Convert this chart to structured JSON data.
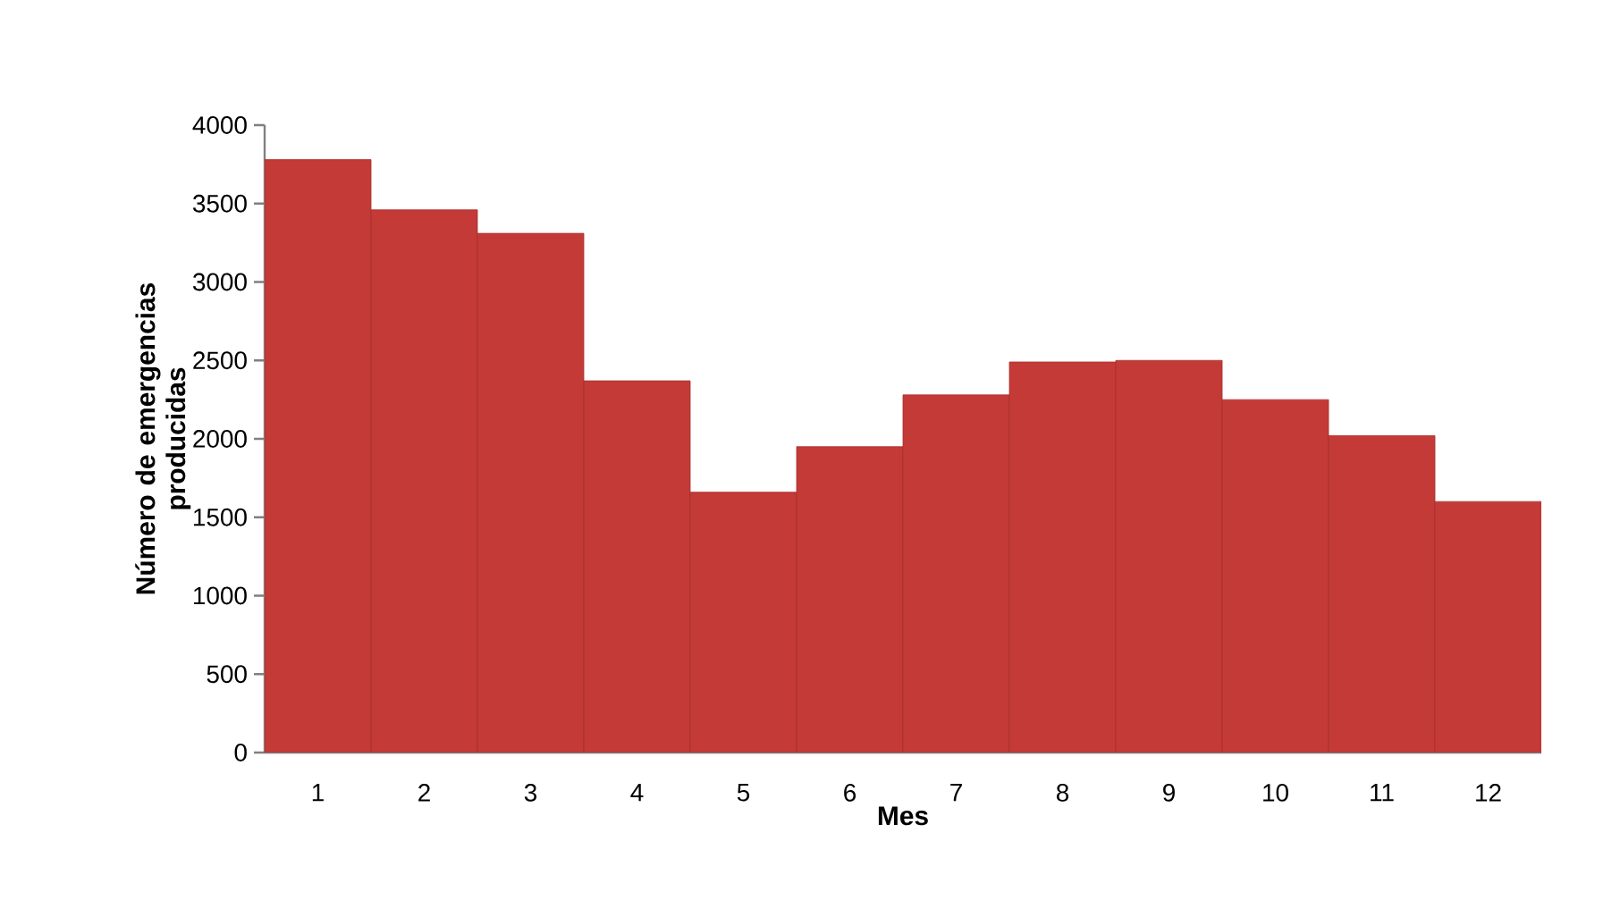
{
  "chart_data": {
    "type": "bar",
    "xlabel": "Mes",
    "ylabel": "Número de emergencias producidas",
    "categories": [
      "1",
      "2",
      "3",
      "4",
      "5",
      "6",
      "7",
      "8",
      "9",
      "10",
      "11",
      "12"
    ],
    "values": [
      3780,
      3460,
      3310,
      2370,
      1660,
      1950,
      2280,
      2490,
      2500,
      2250,
      2020,
      1600
    ],
    "color": "#c43a37",
    "ylim": [
      0,
      4000
    ],
    "yticks": [
      0,
      500,
      1000,
      1500,
      2000,
      2500,
      3000,
      3500,
      4000
    ]
  }
}
